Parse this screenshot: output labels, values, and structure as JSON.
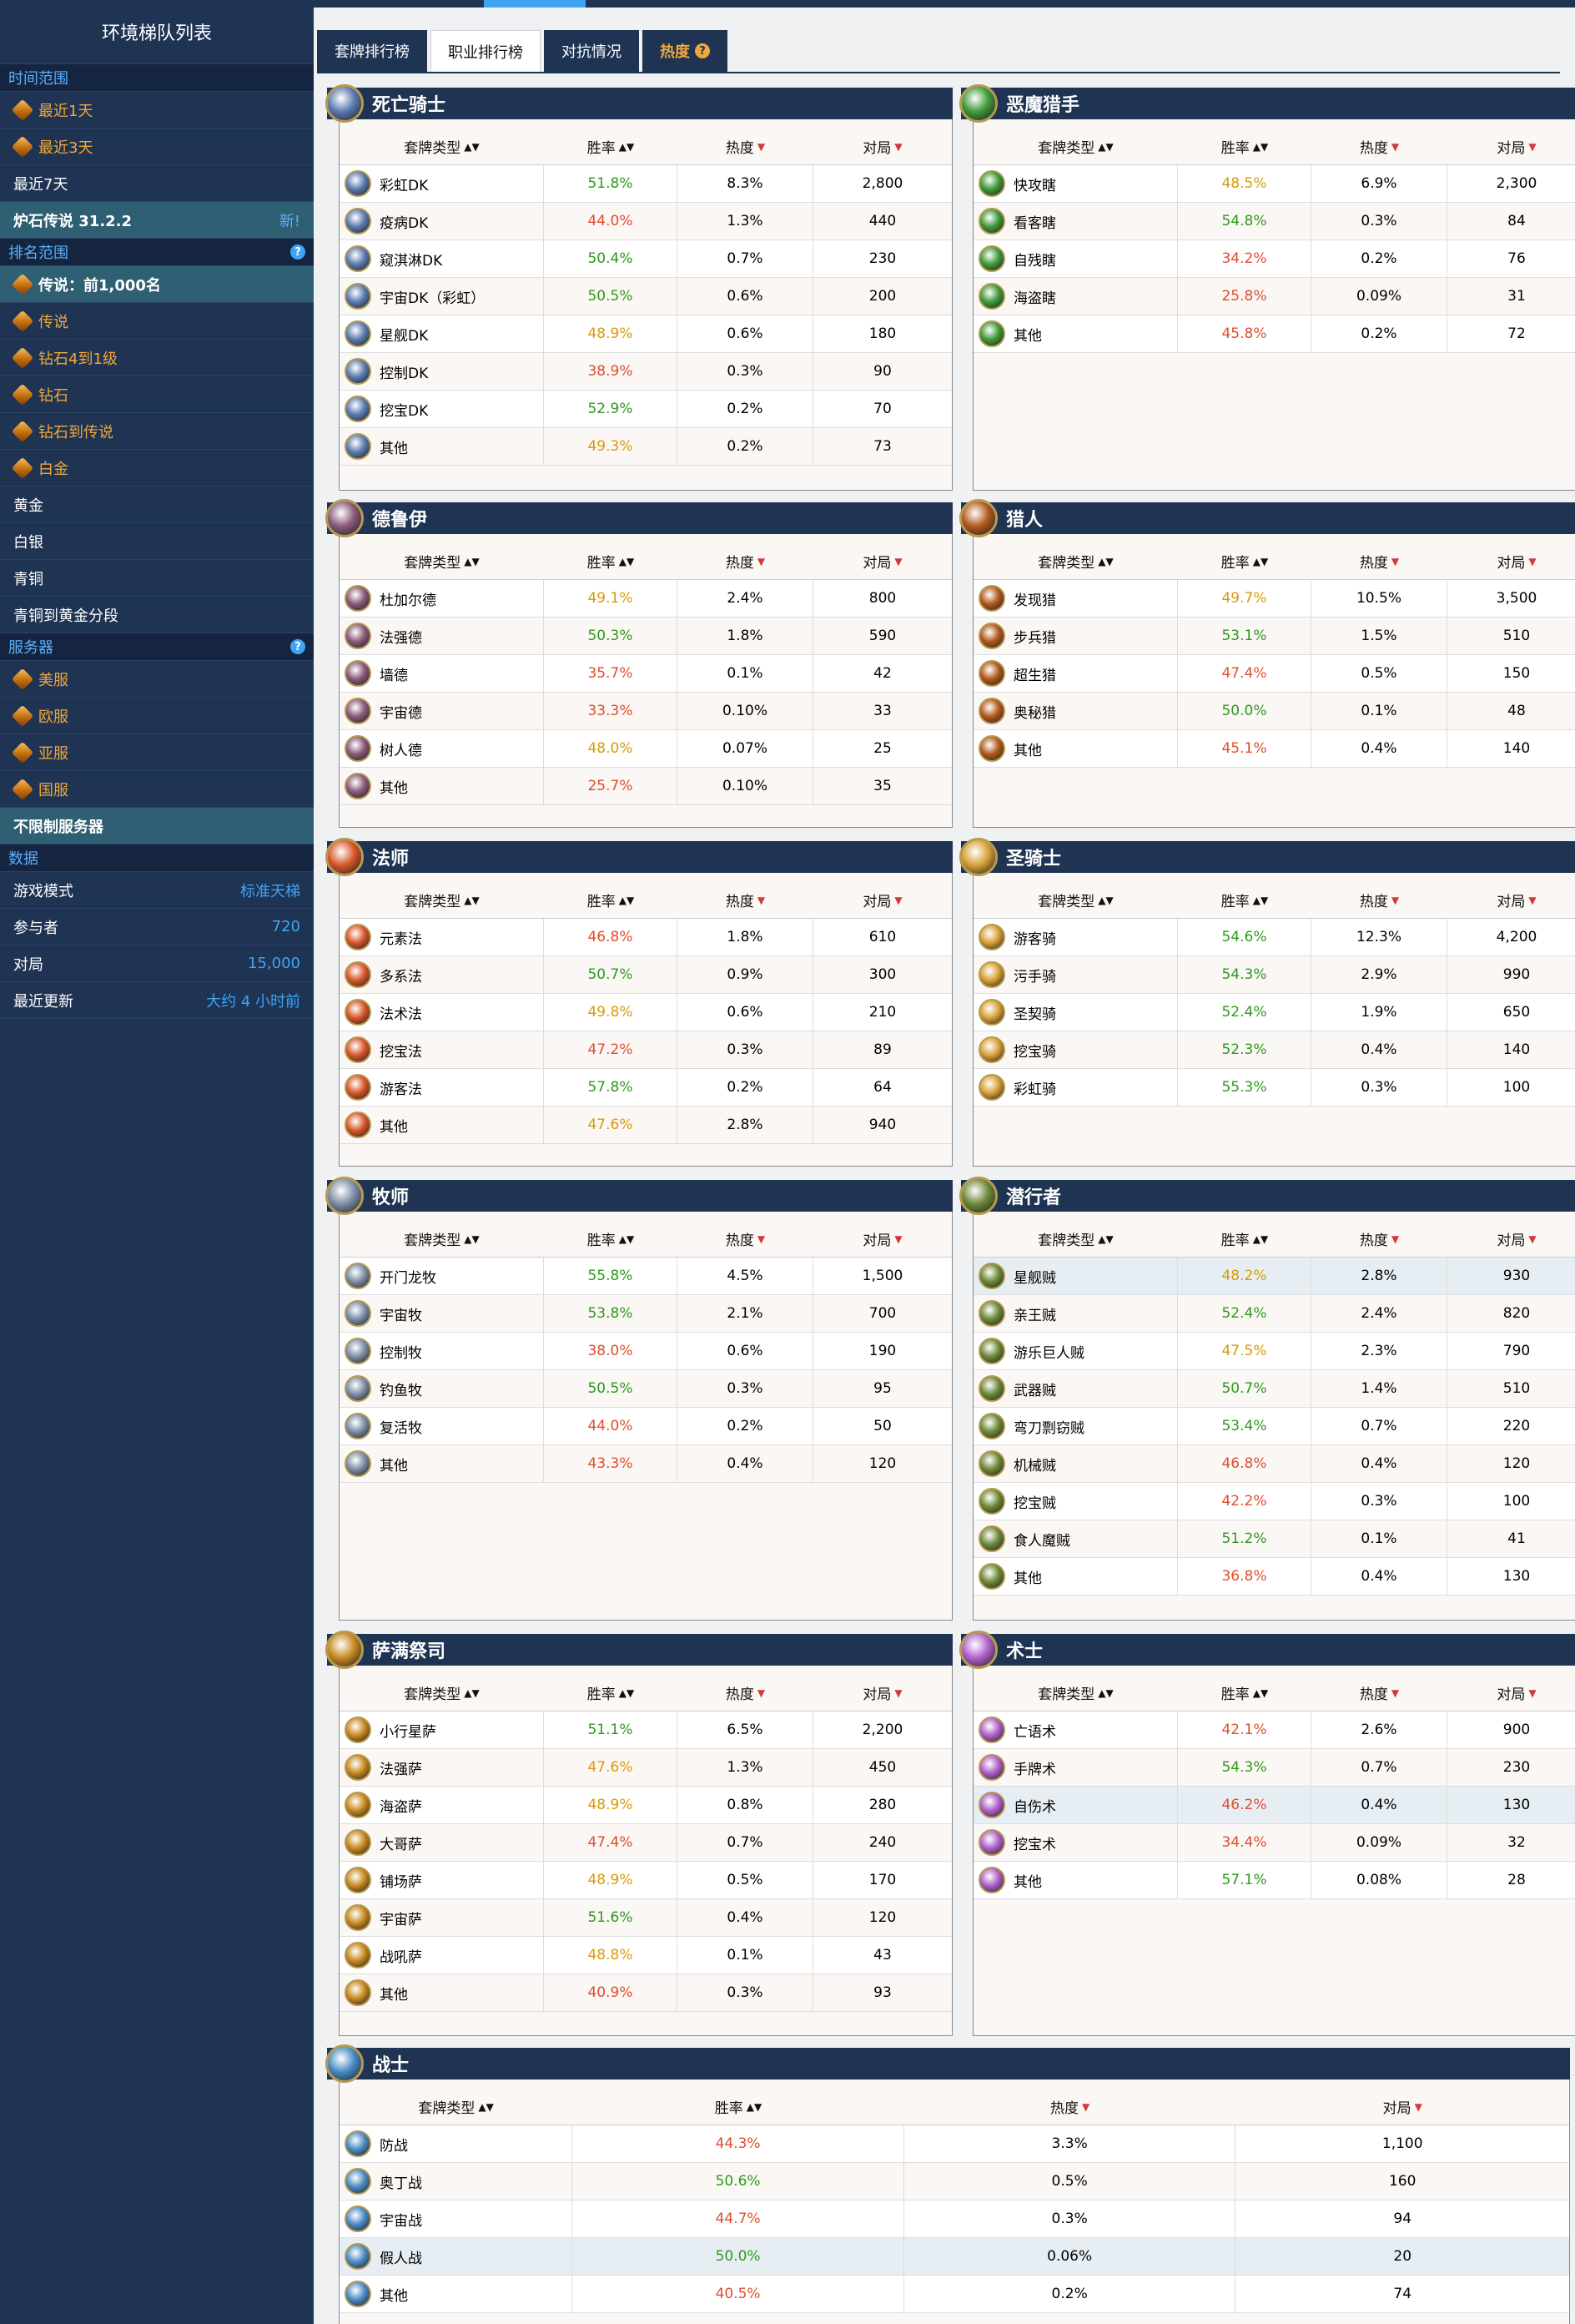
{
  "sidebar": {
    "title": "环境梯队列表",
    "time_section": "时间范围",
    "time_items": [
      "最近1天",
      "最近3天",
      "最近7天"
    ],
    "patch_label": "炉石传说 31.2.2",
    "patch_new": "新!",
    "rank_section": "排名范围",
    "rank_items": [
      "传说：前1,000名",
      "传说",
      "钻石4到1级",
      "钻石",
      "钻石到传说",
      "白金",
      "黄金",
      "白银",
      "青铜",
      "青铜到黄金分段"
    ],
    "server_section": "服务器",
    "server_items": [
      "美服",
      "欧服",
      "亚服",
      "国服"
    ],
    "server_all": "不限制服务器",
    "data_section": "数据",
    "data_rows": [
      {
        "k": "游戏模式",
        "v": "标准天梯"
      },
      {
        "k": "参与者",
        "v": "720"
      },
      {
        "k": "对局",
        "v": "15,000"
      },
      {
        "k": "最近更新",
        "v": "大约 4 小时前"
      }
    ]
  },
  "tabs": [
    "套牌排行榜",
    "职业排行榜",
    "对抗情况",
    "热度"
  ],
  "columns": {
    "deck": "套牌类型",
    "winrate": "胜率",
    "pop": "热度",
    "games": "对局",
    "sort_both": "▲▼",
    "sort_down": "▼"
  },
  "panels": [
    {
      "name": "死亡骑士",
      "color": "#5b7bb0",
      "rows": [
        {
          "n": "彩虹DK",
          "w": "51.8%",
          "p": "8.3%",
          "g": "2,800"
        },
        {
          "n": "疫病DK",
          "w": "44.0%",
          "p": "1.3%",
          "g": "440"
        },
        {
          "n": "窥淇淋DK",
          "w": "50.4%",
          "p": "0.7%",
          "g": "230"
        },
        {
          "n": "宇宙DK（彩虹）",
          "w": "50.5%",
          "p": "0.6%",
          "g": "200"
        },
        {
          "n": "星舰DK",
          "w": "48.9%",
          "p": "0.6%",
          "g": "180"
        },
        {
          "n": "控制DK",
          "w": "38.9%",
          "p": "0.3%",
          "g": "90"
        },
        {
          "n": "挖宝DK",
          "w": "52.9%",
          "p": "0.2%",
          "g": "70"
        },
        {
          "n": "其他",
          "w": "49.3%",
          "p": "0.2%",
          "g": "73"
        }
      ]
    },
    {
      "name": "恶魔猎手",
      "color": "#3f9b3a",
      "rows": [
        {
          "n": "快攻瞎",
          "w": "48.5%",
          "p": "6.9%",
          "g": "2,300"
        },
        {
          "n": "看客瞎",
          "w": "54.8%",
          "p": "0.3%",
          "g": "84"
        },
        {
          "n": "自残瞎",
          "w": "34.2%",
          "p": "0.2%",
          "g": "76"
        },
        {
          "n": "海盗瞎",
          "w": "25.8%",
          "p": "0.09%",
          "g": "31"
        },
        {
          "n": "其他",
          "w": "45.8%",
          "p": "0.2%",
          "g": "72"
        }
      ]
    },
    {
      "name": "德鲁伊",
      "color": "#8a5a7a",
      "rows": [
        {
          "n": "杜加尔德",
          "w": "49.1%",
          "p": "2.4%",
          "g": "800"
        },
        {
          "n": "法强德",
          "w": "50.3%",
          "p": "1.8%",
          "g": "590"
        },
        {
          "n": "墙德",
          "w": "35.7%",
          "p": "0.1%",
          "g": "42"
        },
        {
          "n": "宇宙德",
          "w": "33.3%",
          "p": "0.10%",
          "g": "33"
        },
        {
          "n": "树人德",
          "w": "48.0%",
          "p": "0.07%",
          "g": "25"
        },
        {
          "n": "其他",
          "w": "25.7%",
          "p": "0.10%",
          "g": "35"
        }
      ]
    },
    {
      "name": "猎人",
      "color": "#b35a1e",
      "rows": [
        {
          "n": "发现猎",
          "w": "49.7%",
          "p": "10.5%",
          "g": "3,500"
        },
        {
          "n": "步兵猎",
          "w": "53.1%",
          "p": "1.5%",
          "g": "510"
        },
        {
          "n": "超生猎",
          "w": "47.4%",
          "p": "0.5%",
          "g": "150"
        },
        {
          "n": "奥秘猎",
          "w": "50.0%",
          "p": "0.1%",
          "g": "48"
        },
        {
          "n": "其他",
          "w": "45.1%",
          "p": "0.4%",
          "g": "140"
        }
      ]
    },
    {
      "name": "法师",
      "color": "#d9572b",
      "rows": [
        {
          "n": "元素法",
          "w": "46.8%",
          "p": "1.8%",
          "g": "610"
        },
        {
          "n": "多系法",
          "w": "50.7%",
          "p": "0.9%",
          "g": "300"
        },
        {
          "n": "法术法",
          "w": "49.8%",
          "p": "0.6%",
          "g": "210"
        },
        {
          "n": "挖宝法",
          "w": "47.2%",
          "p": "0.3%",
          "g": "89"
        },
        {
          "n": "游客法",
          "w": "57.8%",
          "p": "0.2%",
          "g": "64"
        },
        {
          "n": "其他",
          "w": "47.6%",
          "p": "2.8%",
          "g": "940"
        }
      ]
    },
    {
      "name": "圣骑士",
      "color": "#d9a23a",
      "rows": [
        {
          "n": "游客骑",
          "w": "54.6%",
          "p": "12.3%",
          "g": "4,200"
        },
        {
          "n": "污手骑",
          "w": "54.3%",
          "p": "2.9%",
          "g": "990"
        },
        {
          "n": "圣契骑",
          "w": "52.4%",
          "p": "1.9%",
          "g": "650"
        },
        {
          "n": "挖宝骑",
          "w": "52.3%",
          "p": "0.4%",
          "g": "140"
        },
        {
          "n": "彩虹骑",
          "w": "55.3%",
          "p": "0.3%",
          "g": "100"
        }
      ]
    },
    {
      "name": "牧师",
      "color": "#7d8fa8",
      "rows": [
        {
          "n": "开门龙牧",
          "w": "55.8%",
          "p": "4.5%",
          "g": "1,500"
        },
        {
          "n": "宇宙牧",
          "w": "53.8%",
          "p": "2.1%",
          "g": "700"
        },
        {
          "n": "控制牧",
          "w": "38.0%",
          "p": "0.6%",
          "g": "190"
        },
        {
          "n": "钓鱼牧",
          "w": "50.5%",
          "p": "0.3%",
          "g": "95"
        },
        {
          "n": "复活牧",
          "w": "44.0%",
          "p": "0.2%",
          "g": "50"
        },
        {
          "n": "其他",
          "w": "43.3%",
          "p": "0.4%",
          "g": "120"
        }
      ]
    },
    {
      "name": "潜行者",
      "color": "#6f8a3a",
      "rows": [
        {
          "n": "星舰贼",
          "w": "48.2%",
          "p": "2.8%",
          "g": "930"
        },
        {
          "n": "亲王贼",
          "w": "52.4%",
          "p": "2.4%",
          "g": "820"
        },
        {
          "n": "游乐巨人贼",
          "w": "47.5%",
          "p": "2.3%",
          "g": "790"
        },
        {
          "n": "武器贼",
          "w": "50.7%",
          "p": "1.4%",
          "g": "510"
        },
        {
          "n": "弯刀剽窃贼",
          "w": "53.4%",
          "p": "0.7%",
          "g": "220"
        },
        {
          "n": "机械贼",
          "w": "46.8%",
          "p": "0.4%",
          "g": "120"
        },
        {
          "n": "挖宝贼",
          "w": "42.2%",
          "p": "0.3%",
          "g": "100"
        },
        {
          "n": "食人魔贼",
          "w": "51.2%",
          "p": "0.1%",
          "g": "41"
        },
        {
          "n": "其他",
          "w": "36.8%",
          "p": "0.4%",
          "g": "130"
        }
      ]
    },
    {
      "name": "萨满祭司",
      "color": "#c98a22",
      "rows": [
        {
          "n": "小行星萨",
          "w": "51.1%",
          "p": "6.5%",
          "g": "2,200"
        },
        {
          "n": "法强萨",
          "w": "47.6%",
          "p": "1.3%",
          "g": "450"
        },
        {
          "n": "海盗萨",
          "w": "48.9%",
          "p": "0.8%",
          "g": "280"
        },
        {
          "n": "大哥萨",
          "w": "47.4%",
          "p": "0.7%",
          "g": "240"
        },
        {
          "n": "铺场萨",
          "w": "48.9%",
          "p": "0.5%",
          "g": "170"
        },
        {
          "n": "宇宙萨",
          "w": "51.6%",
          "p": "0.4%",
          "g": "120"
        },
        {
          "n": "战吼萨",
          "w": "48.8%",
          "p": "0.1%",
          "g": "43"
        },
        {
          "n": "其他",
          "w": "40.9%",
          "p": "0.3%",
          "g": "93"
        }
      ]
    },
    {
      "name": "术士",
      "color": "#b061c9",
      "rows": [
        {
          "n": "亡语术",
          "w": "42.1%",
          "p": "2.6%",
          "g": "900"
        },
        {
          "n": "手牌术",
          "w": "54.3%",
          "p": "0.7%",
          "g": "230"
        },
        {
          "n": "自伤术",
          "w": "46.2%",
          "p": "0.4%",
          "g": "130"
        },
        {
          "n": "挖宝术",
          "w": "34.4%",
          "p": "0.09%",
          "g": "32"
        },
        {
          "n": "其他",
          "w": "57.1%",
          "p": "0.08%",
          "g": "28"
        }
      ]
    },
    {
      "name": "战士",
      "color": "#4a8cc4",
      "rows": [
        {
          "n": "防战",
          "w": "44.3%",
          "p": "3.3%",
          "g": "1,100"
        },
        {
          "n": "奥丁战",
          "w": "50.6%",
          "p": "0.5%",
          "g": "160"
        },
        {
          "n": "宇宙战",
          "w": "44.7%",
          "p": "0.3%",
          "g": "94"
        },
        {
          "n": "假人战",
          "w": "50.0%",
          "p": "0.06%",
          "g": "20"
        },
        {
          "n": "其他",
          "w": "40.5%",
          "p": "0.2%",
          "g": "74"
        }
      ]
    }
  ]
}
